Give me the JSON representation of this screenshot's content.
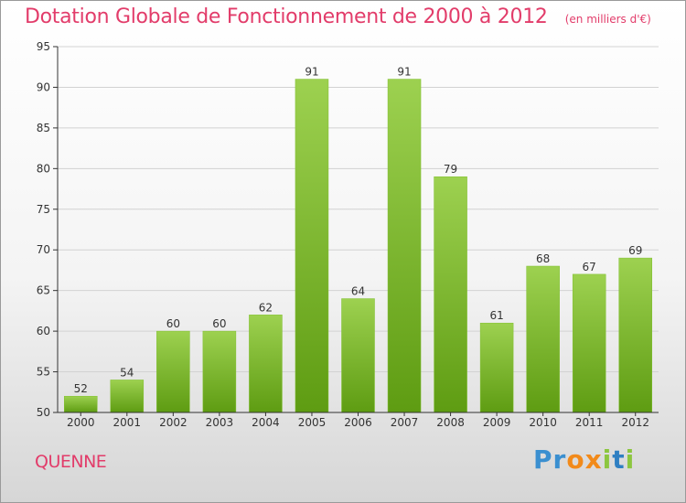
{
  "header": {
    "title": "Dotation Globale de Fonctionnement de 2000 à 2012",
    "subtitle": "(en milliers d'€)"
  },
  "footer": {
    "commune": "QUENNE",
    "logo_letters": [
      {
        "ch": "P",
        "color": "#3a8fd0"
      },
      {
        "ch": "r",
        "color": "#3a8fd0"
      },
      {
        "ch": "o",
        "color": "#f28a1a"
      },
      {
        "ch": "x",
        "color": "#f28a1a"
      },
      {
        "ch": "i",
        "color": "#8cc63f"
      },
      {
        "ch": "t",
        "color": "#2f7fc2"
      },
      {
        "ch": "i",
        "color": "#8cc63f"
      }
    ]
  },
  "chart_data": {
    "type": "bar",
    "categories": [
      "2000",
      "2001",
      "2002",
      "2003",
      "2004",
      "2005",
      "2006",
      "2007",
      "2008",
      "2009",
      "2010",
      "2011",
      "2012"
    ],
    "values": [
      52,
      54,
      60,
      60,
      62,
      91,
      64,
      91,
      79,
      61,
      68,
      67,
      69
    ],
    "ylim": [
      50,
      95
    ],
    "yticks": [
      50,
      55,
      60,
      65,
      70,
      75,
      80,
      85,
      90,
      95
    ],
    "grid": true,
    "colors": {
      "bar_top": "#9dd150",
      "bar_bottom": "#5e9c12",
      "grid": "#d2d2d2",
      "axis": "#333333",
      "text": "#333333"
    }
  }
}
